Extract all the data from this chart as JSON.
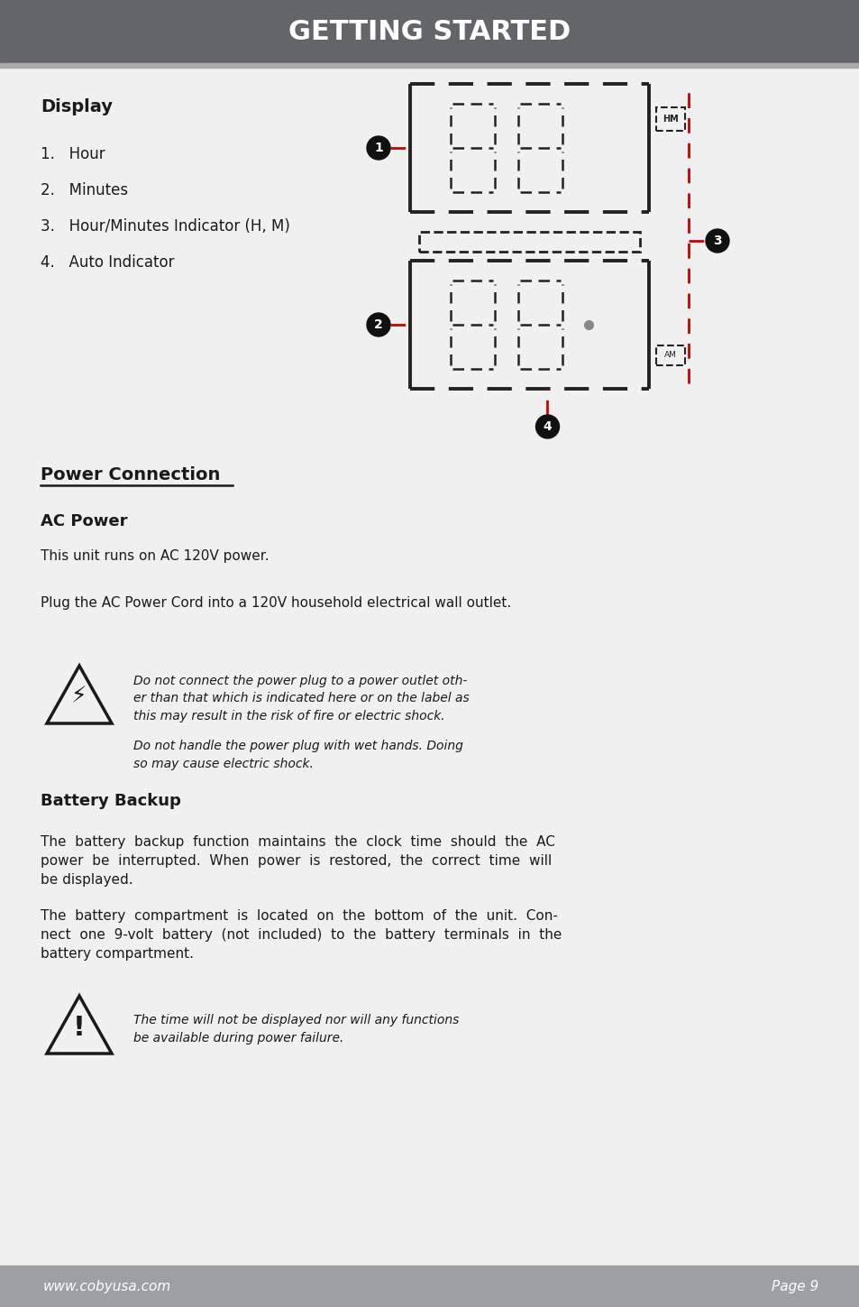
{
  "title": "GETTING STARTED",
  "title_bg": "#636569",
  "title_color": "#ffffff",
  "page_bg": "#f0f0f0",
  "footer_bg": "#9d9fa2",
  "footer_left": "www.cobyusa.com",
  "footer_right": "Page 9",
  "footer_color": "#ffffff",
  "display_title": "Display",
  "display_items": [
    "1.   Hour",
    "2.   Minutes",
    "3.   Hour/Minutes Indicator (H, M)",
    "4.   Auto Indicator"
  ],
  "power_connection_title": "Power Connection",
  "ac_power_title": "AC Power",
  "ac_power_text1": "This unit runs on AC 120V power.",
  "ac_power_text2": "Plug the AC Power Cord into a 120V household electrical wall outlet.",
  "warning1": "Do not connect the power plug to a power outlet oth-\ner than that which is indicated here or on the label as\nthis may result in the risk of fire or electric shock.",
  "warning2": "Do not handle the power plug with wet hands. Doing\nso may cause electric shock.",
  "battery_title": "Battery Backup",
  "battery_text1": "The  battery  backup  function  maintains  the  clock  time  should  the  AC\npower  be  interrupted.  When  power  is  restored,  the  correct  time  will\nbe displayed.",
  "battery_text2": "The  battery  compartment  is  located  on  the  bottom  of  the  unit.  Con-\nnect  one  9-volt  battery  (not  included)  to  the  battery  terminals  in  the\nbattery compartment.",
  "warning3": "The time will not be displayed nor will any functions\nbe available during power failure.",
  "red_color": "#cc0000",
  "black_color": "#1a1a1a",
  "seg_color": "#222222",
  "footer_sep_color": "#aaaaaa",
  "underline_color": "#1a1a1a"
}
